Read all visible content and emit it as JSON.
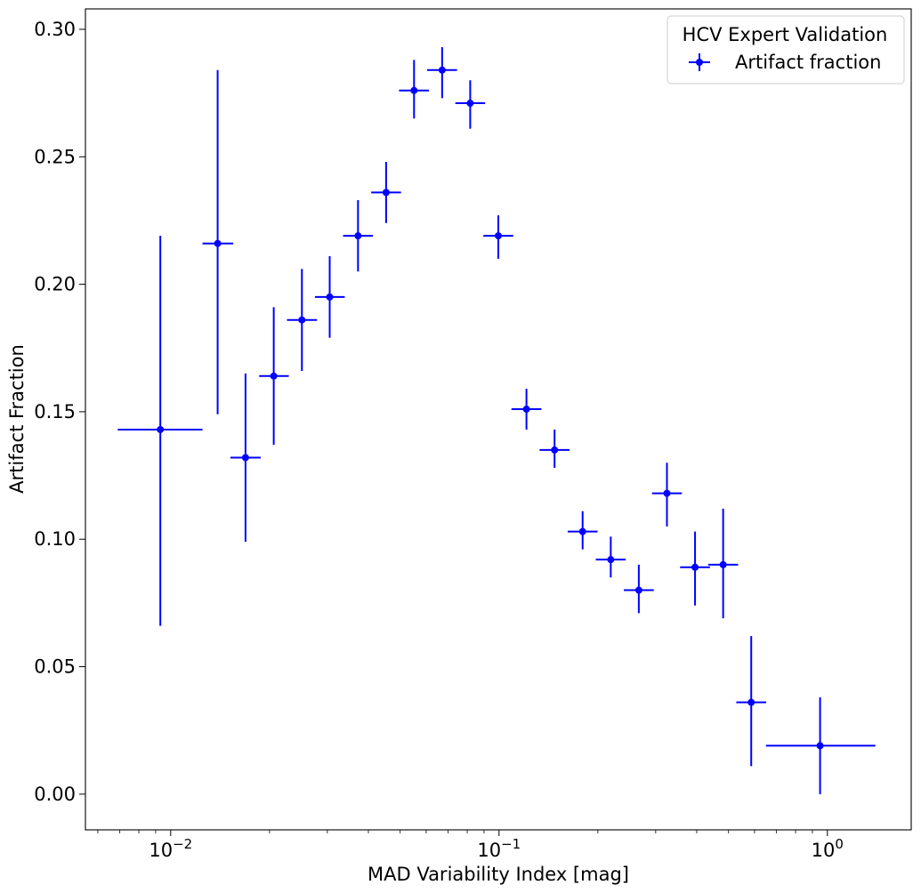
{
  "chart_data": {
    "type": "scatter",
    "plot_style": "errorbar",
    "xscale": "log",
    "xlabel": "MAD Variability Index [mag]",
    "ylabel": "Artifact Fraction",
    "xlim": [
      0.0055,
      1.8
    ],
    "ylim": [
      -0.014,
      0.308
    ],
    "yticks": [
      0.0,
      0.05,
      0.1,
      0.15,
      0.2,
      0.25,
      0.3
    ],
    "ytick_labels": [
      "0.00",
      "0.05",
      "0.10",
      "0.15",
      "0.20",
      "0.25",
      "0.30"
    ],
    "xticks": [
      {
        "value": 0.01,
        "base": "10",
        "exp": "−2"
      },
      {
        "value": 0.1,
        "base": "10",
        "exp": "−1"
      },
      {
        "value": 1,
        "base": "10",
        "exp": "0"
      }
    ],
    "legend": {
      "title": "HCV Expert Validation",
      "position": "top-right",
      "entries": [
        "Artifact fraction"
      ]
    },
    "color": "#0000ff",
    "series": [
      {
        "name": "Artifact fraction",
        "points": [
          {
            "x": 0.0093,
            "y": 0.143,
            "xlo": 0.0069,
            "xhi": 0.0125,
            "ylo": 0.066,
            "yhi": 0.219
          },
          {
            "x": 0.0139,
            "y": 0.216,
            "xlo": 0.0125,
            "xhi": 0.0155,
            "ylo": 0.149,
            "yhi": 0.284
          },
          {
            "x": 0.0169,
            "y": 0.132,
            "xlo": 0.0152,
            "xhi": 0.0188,
            "ylo": 0.099,
            "yhi": 0.165
          },
          {
            "x": 0.0206,
            "y": 0.164,
            "xlo": 0.0186,
            "xhi": 0.0229,
            "ylo": 0.137,
            "yhi": 0.191
          },
          {
            "x": 0.0251,
            "y": 0.186,
            "xlo": 0.0226,
            "xhi": 0.0279,
            "ylo": 0.166,
            "yhi": 0.206
          },
          {
            "x": 0.0305,
            "y": 0.195,
            "xlo": 0.0275,
            "xhi": 0.0339,
            "ylo": 0.179,
            "yhi": 0.211
          },
          {
            "x": 0.0372,
            "y": 0.219,
            "xlo": 0.0335,
            "xhi": 0.0413,
            "ylo": 0.205,
            "yhi": 0.233
          },
          {
            "x": 0.0453,
            "y": 0.236,
            "xlo": 0.0408,
            "xhi": 0.0503,
            "ylo": 0.224,
            "yhi": 0.248
          },
          {
            "x": 0.0551,
            "y": 0.276,
            "xlo": 0.0496,
            "xhi": 0.0612,
            "ylo": 0.265,
            "yhi": 0.288
          },
          {
            "x": 0.0671,
            "y": 0.284,
            "xlo": 0.0604,
            "xhi": 0.0745,
            "ylo": 0.273,
            "yhi": 0.293
          },
          {
            "x": 0.0817,
            "y": 0.271,
            "xlo": 0.0736,
            "xhi": 0.0907,
            "ylo": 0.261,
            "yhi": 0.28
          },
          {
            "x": 0.0995,
            "y": 0.219,
            "xlo": 0.0896,
            "xhi": 0.1105,
            "ylo": 0.21,
            "yhi": 0.227
          },
          {
            "x": 0.1212,
            "y": 0.151,
            "xlo": 0.1091,
            "xhi": 0.1346,
            "ylo": 0.143,
            "yhi": 0.159
          },
          {
            "x": 0.1476,
            "y": 0.135,
            "xlo": 0.1329,
            "xhi": 0.1639,
            "ylo": 0.128,
            "yhi": 0.143
          },
          {
            "x": 0.1797,
            "y": 0.103,
            "xlo": 0.1618,
            "xhi": 0.1996,
            "ylo": 0.096,
            "yhi": 0.111
          },
          {
            "x": 0.2189,
            "y": 0.092,
            "xlo": 0.1971,
            "xhi": 0.2431,
            "ylo": 0.085,
            "yhi": 0.101
          },
          {
            "x": 0.2665,
            "y": 0.08,
            "xlo": 0.24,
            "xhi": 0.296,
            "ylo": 0.071,
            "yhi": 0.09
          },
          {
            "x": 0.3246,
            "y": 0.118,
            "xlo": 0.2923,
            "xhi": 0.3605,
            "ylo": 0.105,
            "yhi": 0.13
          },
          {
            "x": 0.3953,
            "y": 0.089,
            "xlo": 0.356,
            "xhi": 0.439,
            "ylo": 0.074,
            "yhi": 0.103
          },
          {
            "x": 0.4814,
            "y": 0.09,
            "xlo": 0.4335,
            "xhi": 0.5346,
            "ylo": 0.069,
            "yhi": 0.112
          },
          {
            "x": 0.5862,
            "y": 0.036,
            "xlo": 0.5279,
            "xhi": 0.651,
            "ylo": 0.011,
            "yhi": 0.062
          },
          {
            "x": 0.95,
            "y": 0.019,
            "xlo": 0.65,
            "xhi": 1.4,
            "ylo": 0.0,
            "yhi": 0.038
          }
        ]
      }
    ]
  }
}
